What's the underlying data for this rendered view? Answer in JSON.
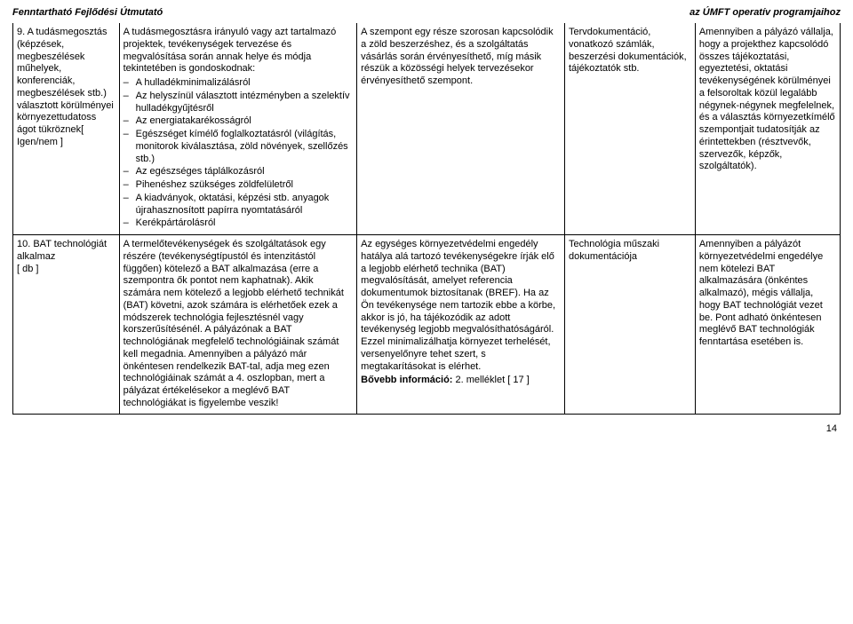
{
  "header": {
    "left": "Fenntartható Fejlődési Útmutató",
    "right": "az ÚMFT operatív programjaihoz"
  },
  "rows": [
    {
      "c0_lines": [
        "9. A tudásmegosztás (képzések, megbeszélések műhelyek, konferenciák, megbeszélések stb.) választott körülményei környezettudatoss ágot tükröznek[ Igen/nem ]"
      ],
      "c1_intro": "A tudásmegosztásra irányuló vagy azt tartalmazó projektek, tevékenységek tervezése és megvalósítása során annak helye és módja tekintetében is gondoskodnak:",
      "c1_list": [
        "A hulladékminimalizálásról",
        "Az helyszínül választott intézményben a szelektív hulladékgyűjtésről",
        "Az energiatakarékosságról",
        "Egészséget kímélő foglalkoztatásról (világítás, monitorok kiválasztása, zöld növények, szellőzés stb.)",
        "Az egészséges táplálkozásról",
        "Pihenéshez szükséges zöldfelületről",
        "A kiadványok, oktatási, képzési stb. anyagok újrahasznosított papírra nyomtatásáról",
        "Kerékpártárolásról"
      ],
      "c2_text": "A szempont egy része szorosan kapcsolódik a zöld beszerzéshez, és a szolgáltatás vásárlás során érvényesíthető, míg másik részük a közösségi helyek tervezésekor érvényesíthető szempont.",
      "c3_text": "Tervdokumentáció, vonatkozó számlák, beszerzési dokumentációk, tájékoztatók stb.",
      "c4_text": "Amennyiben a pályázó vállalja, hogy a projekthez kapcsolódó összes tájékoztatási, egyeztetési, oktatási tevékenységének körülményei a felsoroltak közül legalább négynek-négynek megfelelnek, és a választás környezetkímélő szempontjait tudatosítják az érintettekben (résztvevők, szervezők, képzők, szolgáltatók)."
    },
    {
      "c0_lines": [
        "10. BAT technológiát alkalmaz",
        "[ db ]"
      ],
      "c1_text": "A termelőtevékenységek és szolgáltatások egy részére (tevékenységtípustól és intenzitástól függően) kötelező a BAT alkalmazása (erre a szempontra ők pontot nem kaphatnak). Akik számára nem kötelező a legjobb elérhető technikát (BAT) követni, azok számára is elérhetőek ezek a módszerek technológia fejlesztésnél vagy korszerűsítésénél. A pályázónak a BAT technológiának megfelelő technológiáinak számát kell megadnia. Amennyiben a pályázó már önkéntesen rendelkezik BAT-tal, adja meg ezen technológiáinak számát a 4. oszlopban, mert a pályázat értékelésekor a meglévő BAT technológiákat is figyelembe veszik!",
      "c2_text_parts": [
        {
          "text": "Az egységes környezetvédelmi engedély hatálya alá tartozó tevékenységekre írják elő a legjobb elérhető technika (BAT) megvalósítását, amelyet referencia dokumentumok biztosítanak (BREF). Ha az Ön tevékenysége nem tartozik ebbe a körbe, akkor is jó, ha tájékozódik az adott tevékenység legjobb megvalósíthatóságáról. Ezzel minimalizálhatja környezet terhelését, versenyelőnyre tehet szert, s megtakarításokat is elérhet."
        },
        {
          "bold": "Bővebb információ:",
          "text": " 2. melléklet [ 17 ]"
        }
      ],
      "c3_text": "Technológia műszaki dokumentációja",
      "c4_text": "Amennyiben a pályázót környezetvédelmi engedélye nem kötelezi BAT alkalmazására (önkéntes alkalmazó), mégis vállalja, hogy BAT technológiát vezet be. Pont adható önkéntesen meglévő BAT technológiák fenntartása esetében is."
    }
  ],
  "page_number": "14"
}
